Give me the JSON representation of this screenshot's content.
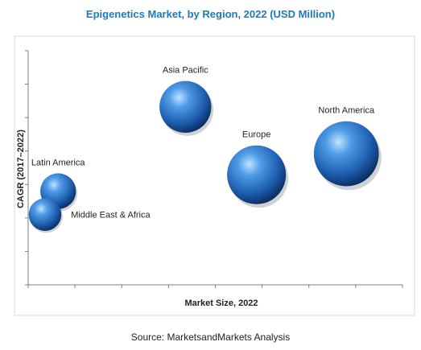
{
  "chart_data": {
    "type": "bubble",
    "title": "Epigenetics Market, by Region, 2022 (USD Million)",
    "xlabel": "Market Size, 2022",
    "ylabel": "CAGR (2017–2022)",
    "xlim": [
      0,
      10
    ],
    "ylim": [
      0,
      10
    ],
    "grid": false,
    "x_tick_labels_shown": false,
    "y_tick_labels_shown": false,
    "points": [
      {
        "label": "North America",
        "x": 8.5,
        "y": 5.6,
        "size": 10
      },
      {
        "label": "Europe",
        "x": 6.1,
        "y": 4.7,
        "size": 8
      },
      {
        "label": "Asia Pacific",
        "x": 4.2,
        "y": 7.6,
        "size": 6
      },
      {
        "label": "Latin America",
        "x": 0.8,
        "y": 4.0,
        "size": 2.5
      },
      {
        "label": "Middle East & Africa",
        "x": 0.45,
        "y": 3.0,
        "size": 2
      }
    ],
    "bubble_color": "#2f6fb5"
  },
  "source": "Source:  MarketsandMarkets Analysis"
}
